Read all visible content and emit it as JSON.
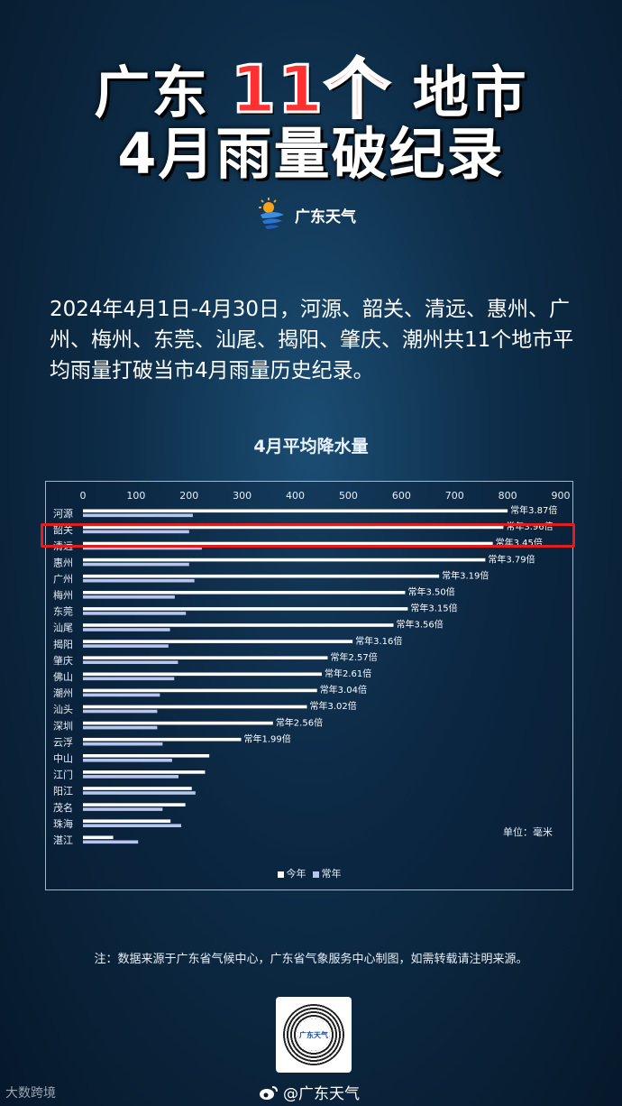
{
  "title": {
    "line1_a": "广东",
    "line1_hl": "11个",
    "line1_b": "地市",
    "line2": "4月雨量破纪录"
  },
  "logo": {
    "text": "广东天气",
    "icon": "sun-cloud-logo-icon"
  },
  "description": "2024年4月1日-4月30日，河源、韶关、清远、惠州、广州、梅州、东莞、汕尾、揭阳、肇庆、潮州共11个地市平均雨量打破当市4月雨量历史纪录。",
  "chart_data": {
    "type": "bar",
    "title": "4月平均降水量",
    "orientation": "horizontal",
    "categories": [
      "河源",
      "韶关",
      "清远",
      "惠州",
      "广州",
      "梅州",
      "东莞",
      "汕尾",
      "揭阳",
      "肇庆",
      "佛山",
      "潮州",
      "汕头",
      "深圳",
      "云浮",
      "中山",
      "江门",
      "阳江",
      "茂名",
      "珠海",
      "湛江"
    ],
    "series": [
      {
        "name": "今年",
        "color": "#ffffff",
        "values": [
          800,
          792,
          772,
          758,
          671,
          607,
          612,
          585,
          508,
          461,
          450,
          441,
          422,
          358,
          298,
          238,
          230,
          205,
          193,
          165,
          57
        ]
      },
      {
        "name": "常年",
        "color": "#b8c6ee",
        "values": [
          207,
          200,
          224,
          200,
          210,
          173,
          194,
          164,
          161,
          179,
          172,
          145,
          140,
          140,
          150,
          168,
          180,
          212,
          150,
          185,
          104
        ]
      }
    ],
    "data_labels": [
      "常年3.87倍",
      "常年3.96倍",
      "常年3.45倍",
      "常年3.79倍",
      "常年3.19倍",
      "常年3.50倍",
      "常年3.15倍",
      "常年3.56倍",
      "常年3.16倍",
      "常年2.57倍",
      "常年2.61倍",
      "常年3.04倍",
      "常年3.02倍",
      "常年2.56倍",
      "常年1.99倍",
      "",
      "",
      "",
      "",
      "",
      ""
    ],
    "xticks": [
      "0",
      "100",
      "200",
      "300",
      "400",
      "500",
      "600",
      "700",
      "800",
      "900"
    ],
    "xlim": [
      0,
      900
    ],
    "unit": "单位：毫米",
    "legend": [
      "今年",
      "常年"
    ],
    "legend_position": "bottom",
    "highlighted_category": "韶关",
    "highlight_color": "#e31d1d"
  },
  "note": "注：数据来源于广东省气候中心，广东省气象服务中心制图，如需转载请注明来源。",
  "qr_label": "广东天气",
  "weibo": {
    "handle": "@广东天气",
    "icon": "weibo-icon"
  },
  "watermark": "大数跨境"
}
